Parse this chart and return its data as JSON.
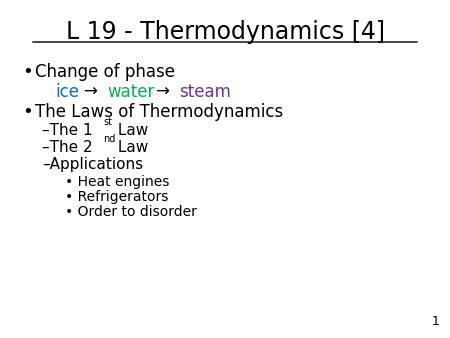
{
  "title": "L 19 - Thermodynamics [4]",
  "background_color": "#ffffff",
  "title_color": "#000000",
  "title_fontsize": 17,
  "page_number": "1",
  "bullet1": "Change of phase",
  "phase_ice": "ice",
  "phase_water": "water",
  "phase_steam": "steam",
  "ice_color": "#0070c0",
  "water_color": "#00b050",
  "steam_color": "#7030a0",
  "arrow_color": "#000000",
  "bullet2": "The Laws of Thermodynamics",
  "sup1": "st",
  "sup2": "nd",
  "sub3": "Applications",
  "subsub1": "Heat engines",
  "subsub2": "Refrigerators",
  "subsub3": "Order to disorder",
  "text_color": "#000000",
  "body_fontsize": 12,
  "sub_fontsize": 11,
  "subsub_fontsize": 10,
  "sup_fontsize": 7
}
